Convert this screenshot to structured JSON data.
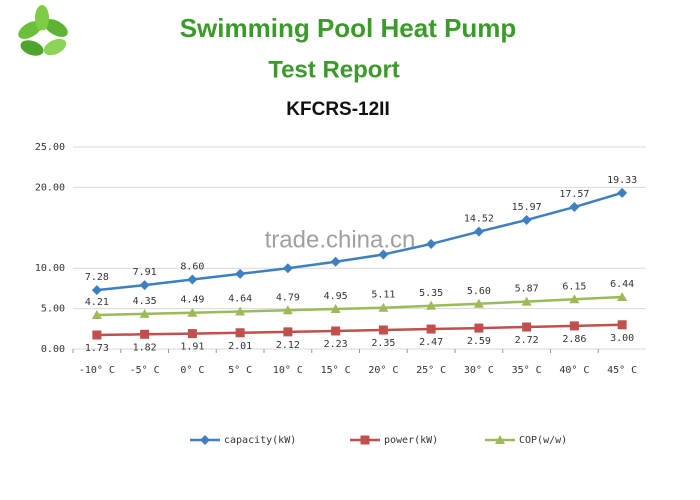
{
  "header": {
    "title": "Swimming Pool Heat Pump",
    "subtitle": "Test Report",
    "model": "KFCRS-12II"
  },
  "watermark": "trade.china.cn",
  "chart_data": {
    "type": "line",
    "categories": [
      "-10° C",
      "-5° C",
      "0° C",
      "5° C",
      "10° C",
      "15° C",
      "20° C",
      "25° C",
      "30° C",
      "35° C",
      "40° C",
      "45° C"
    ],
    "series": [
      {
        "name": "capacity(kW)",
        "color": "#3d7fc1",
        "marker": "diamond",
        "label_side": "above",
        "values": [
          7.28,
          7.91,
          8.6,
          9.3,
          10.0,
          10.8,
          11.7,
          13.0,
          14.52,
          15.97,
          17.57,
          19.33
        ],
        "value_labels": [
          "7.28",
          "7.91",
          "8.60",
          null,
          null,
          null,
          null,
          null,
          "14.52",
          "15.97",
          "17.57",
          "19.33"
        ]
      },
      {
        "name": "power(kW)",
        "color": "#c0504d",
        "marker": "square",
        "label_side": "below",
        "values": [
          1.73,
          1.82,
          1.91,
          2.01,
          2.12,
          2.23,
          2.35,
          2.47,
          2.59,
          2.72,
          2.86,
          3.0
        ],
        "value_labels": [
          "1.73",
          "1.82",
          "1.91",
          "2.01",
          "2.12",
          "2.23",
          "2.35",
          "2.47",
          "2.59",
          "2.72",
          "2.86",
          "3.00"
        ]
      },
      {
        "name": "COP(w/w)",
        "color": "#9bbb59",
        "marker": "triangle",
        "label_side": "above",
        "values": [
          4.21,
          4.35,
          4.49,
          4.64,
          4.79,
          4.95,
          5.11,
          5.35,
          5.6,
          5.87,
          6.15,
          6.44
        ],
        "value_labels": [
          "4.21",
          "4.35",
          "4.49",
          "4.64",
          "4.79",
          "4.95",
          "5.11",
          "5.35",
          "5.60",
          "5.87",
          "6.15",
          "6.44"
        ]
      }
    ],
    "ylim": [
      0,
      25
    ],
    "yticks": [
      {
        "value": 0,
        "label": "0.00"
      },
      {
        "value": 5,
        "label": "5.00"
      },
      {
        "value": 10,
        "label": "10.00"
      },
      {
        "value": 20,
        "label": "20.00"
      },
      {
        "value": 25,
        "label": "25.00"
      }
    ],
    "grid": true,
    "legend": "bottom"
  }
}
